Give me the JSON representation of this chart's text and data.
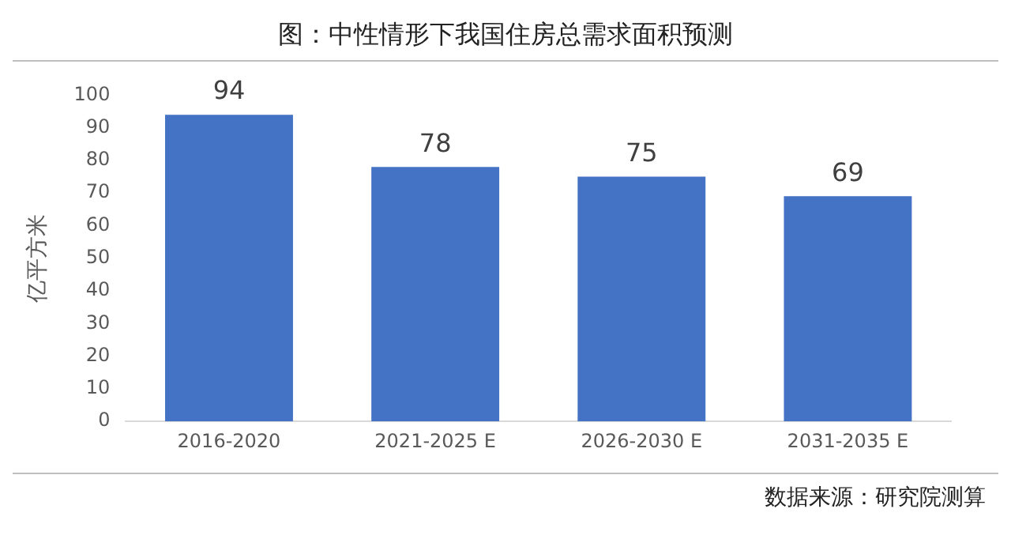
{
  "chart_data": {
    "type": "bar",
    "title": "图：中性情形下我国住房总需求面积预测",
    "categories": [
      "2016-2020",
      "2021-2025 E",
      "2026-2030 E",
      "2031-2035 E"
    ],
    "values": [
      94,
      78,
      75,
      69
    ],
    "color": "#4472c4",
    "ylabel": "亿平方米",
    "ylim": [
      0,
      100
    ],
    "yticks": [
      0,
      10,
      20,
      30,
      40,
      50,
      60,
      70,
      80,
      90,
      100
    ],
    "data_labels": true,
    "grid": false,
    "legend": false,
    "annotations": [
      "数据来源：研究院测算"
    ]
  }
}
